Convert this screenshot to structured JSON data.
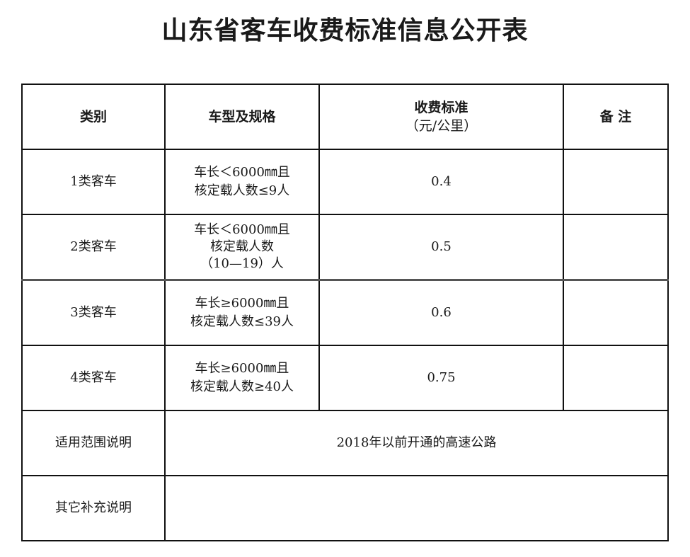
{
  "title": "山东省客车收费标准信息公开表",
  "headers": {
    "category": "类别",
    "spec": "车型及规格",
    "rate_line1": "收费标准",
    "rate_line2": "（元/公里）",
    "remark": "备 注"
  },
  "rows": [
    {
      "category": "1类客车",
      "spec": [
        "车长＜6000㎜且",
        "核定载人数≤9人"
      ],
      "rate": "0.4",
      "remark": ""
    },
    {
      "category": "2类客车",
      "spec": [
        "车长＜6000㎜且",
        "核定载人数",
        "（10—19）人"
      ],
      "rate": "0.5",
      "remark": ""
    },
    {
      "category": "3类客车",
      "spec": [
        "车长≥6000㎜且",
        "核定载人数≤39人"
      ],
      "rate": "0.6",
      "remark": ""
    },
    {
      "category": "4类客车",
      "spec": [
        "车长≥6000㎜且",
        "核定载人数≥40人"
      ],
      "rate": "0.75",
      "remark": ""
    }
  ],
  "scope": {
    "label": "适用范围说明",
    "value": "2018年以前开通的高速公路"
  },
  "other": {
    "label": "其它补充说明",
    "value": ""
  }
}
